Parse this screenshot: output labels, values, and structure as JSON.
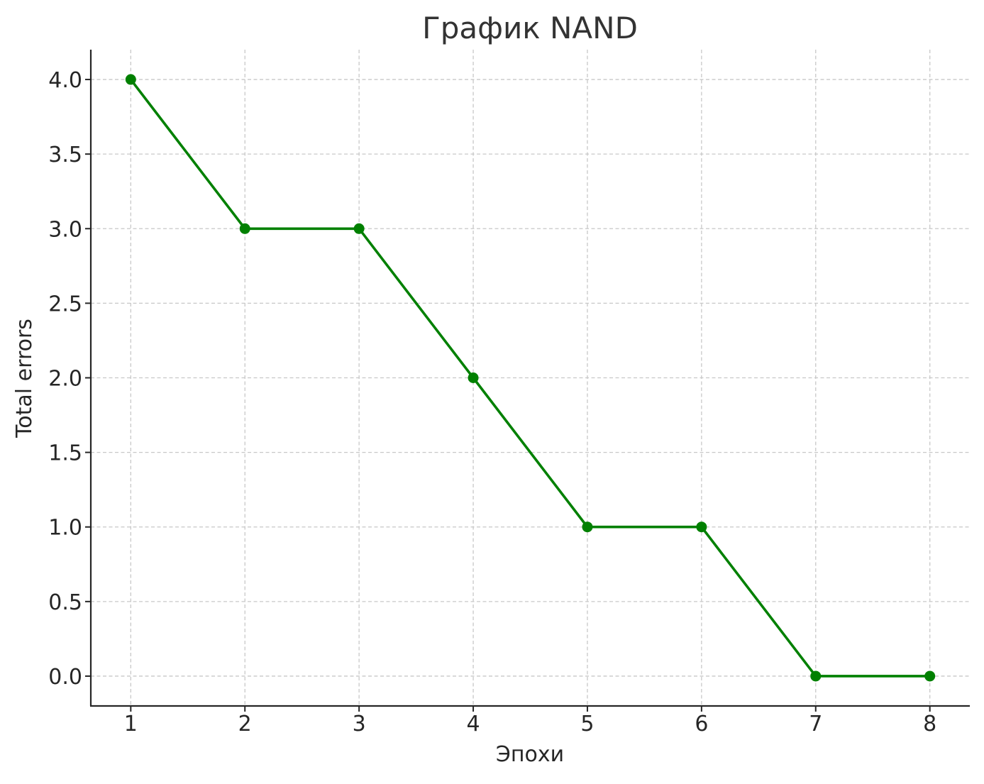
{
  "chart_data": {
    "type": "line",
    "title": "График NAND",
    "xlabel": "Эпохи",
    "ylabel": "Total errors",
    "x": [
      1,
      2,
      3,
      4,
      5,
      6,
      7,
      8
    ],
    "series": [
      {
        "values": [
          4,
          3,
          3,
          2,
          1,
          1,
          0,
          0
        ],
        "color": "#008000",
        "marker": "circle"
      }
    ],
    "xlim": [
      0.65,
      8.35
    ],
    "ylim": [
      -0.2,
      4.2
    ],
    "x_ticks": [
      1,
      2,
      3,
      4,
      5,
      6,
      7,
      8
    ],
    "x_tick_labels": [
      "1",
      "2",
      "3",
      "4",
      "5",
      "6",
      "7",
      "8"
    ],
    "y_ticks": [
      0,
      0.5,
      1,
      1.5,
      2,
      2.5,
      3,
      3.5,
      4
    ],
    "y_tick_labels": [
      "0.0",
      "0.5",
      "1.0",
      "1.5",
      "2.0",
      "2.5",
      "3.0",
      "3.5",
      "4.0"
    ],
    "grid": true,
    "legend": "none"
  }
}
